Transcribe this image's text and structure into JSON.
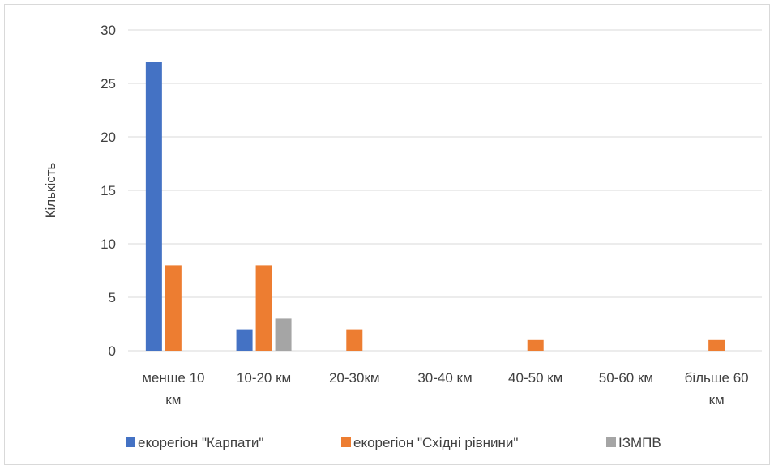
{
  "chart_data": {
    "type": "bar",
    "title": "",
    "xlabel": "",
    "ylabel": "Кількість",
    "ylim": [
      0,
      30
    ],
    "yticks": [
      0,
      5,
      10,
      15,
      20,
      25,
      30
    ],
    "grid": true,
    "legend_position": "bottom",
    "categories": [
      [
        "менше 10",
        "км"
      ],
      [
        "10-20 км"
      ],
      [
        "20-30км"
      ],
      [
        "30-40 км"
      ],
      [
        "40-50 км"
      ],
      [
        "50-60 км"
      ],
      [
        "більше 60",
        "км"
      ]
    ],
    "series": [
      {
        "name": "екорегіон \"Карпати\"",
        "color": "#4472c4",
        "values": [
          27,
          2,
          0,
          0,
          0,
          0,
          0
        ]
      },
      {
        "name": "екорегіон \"Східні рівнини\"",
        "color": "#ed7d31",
        "values": [
          8,
          8,
          2,
          0,
          1,
          0,
          1
        ]
      },
      {
        "name": "ІЗМПВ",
        "color": "#a5a5a5",
        "values": [
          0,
          3,
          0,
          0,
          0,
          0,
          0
        ]
      }
    ]
  }
}
